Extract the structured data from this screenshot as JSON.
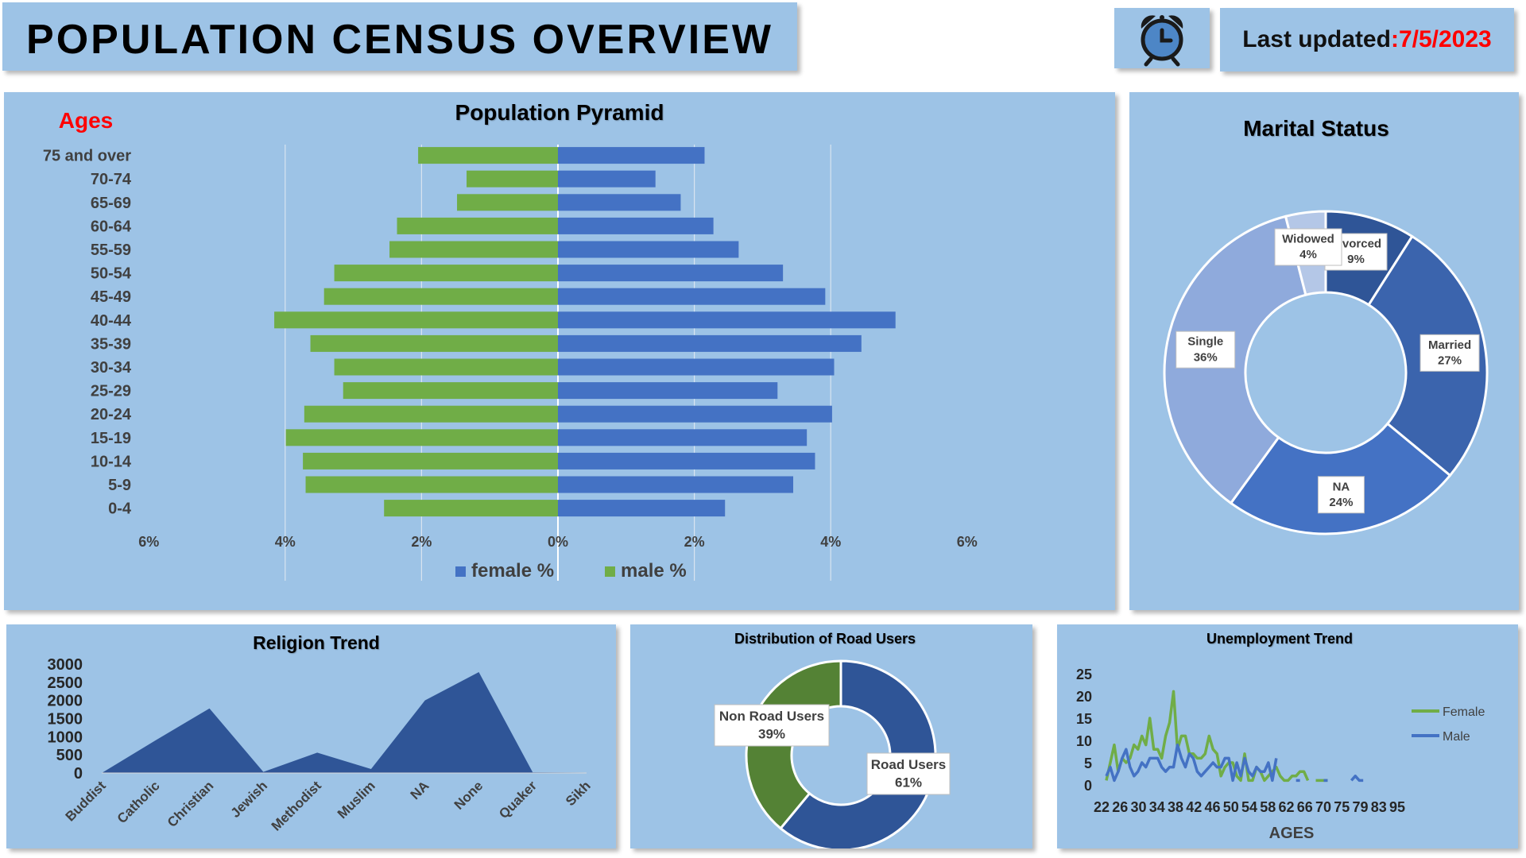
{
  "header": {
    "title": "POPULATION CENSUS OVERVIEW",
    "updated_label": "Last updated",
    "updated_sep": " : ",
    "updated_date": "7/5/2023",
    "clock_icon": "alarm-clock-icon"
  },
  "colors": {
    "panel": "#9dc3e6",
    "female": "#4472c4",
    "male": "#70ad47",
    "dark_blue": "#2f5597",
    "accent_red": "#ff0000"
  },
  "chart_data": [
    {
      "id": "pyramid",
      "type": "bar",
      "title": "Population Pyramid",
      "ylabel": "Ages",
      "categories": [
        "75 and over",
        "70-74",
        "65-69",
        "60-64",
        "55-59",
        "50-54",
        "45-49",
        "40-44",
        "35-39",
        "30-34",
        "25-29",
        "20-24",
        "15-19",
        "10-14",
        "5-9",
        "0-4"
      ],
      "series": [
        {
          "name": "female %",
          "values": [
            2.15,
            1.43,
            1.8,
            2.28,
            2.65,
            3.3,
            3.92,
            4.95,
            4.45,
            4.05,
            3.22,
            4.02,
            3.65,
            3.77,
            3.45,
            2.45
          ]
        },
        {
          "name": "male %",
          "values": [
            2.05,
            1.34,
            1.48,
            2.36,
            2.47,
            3.28,
            3.43,
            4.16,
            3.63,
            3.28,
            3.15,
            3.72,
            3.99,
            3.74,
            3.7,
            2.55
          ]
        }
      ],
      "xlim": [
        -6,
        6
      ],
      "xticks": [
        "6%",
        "4%",
        "2%",
        "0%",
        "2%",
        "4%",
        "6%"
      ],
      "grid": true,
      "legend": "bottom"
    },
    {
      "id": "marital",
      "type": "pie",
      "donut": true,
      "title": "Marital Status",
      "slices": [
        {
          "name": "Divorced",
          "value": 9,
          "label": "9%"
        },
        {
          "name": "Married",
          "value": 27,
          "label": "27%"
        },
        {
          "name": "NA",
          "value": 24,
          "label": "24%"
        },
        {
          "name": "Single",
          "value": 36,
          "label": "36%"
        },
        {
          "name": "Widowed",
          "value": 4,
          "label": "4%"
        }
      ],
      "colors": [
        "#2f5597",
        "#3b64ad",
        "#4472c4",
        "#8faadc",
        "#b4c7e7"
      ]
    },
    {
      "id": "religion",
      "type": "area",
      "title": "Religion Trend",
      "categories": [
        "Buddist",
        "Catholic",
        "Christian",
        "Jewish",
        "Methodist",
        "Muslim",
        "NA",
        "None",
        "Quaker",
        "Sikh"
      ],
      "values": [
        0,
        900,
        1780,
        30,
        560,
        110,
        2000,
        2780,
        20,
        10
      ],
      "ylim": [
        0,
        3000
      ],
      "yticks": [
        0,
        500,
        1000,
        1500,
        2000,
        2500,
        3000
      ],
      "color": "#2f5597"
    },
    {
      "id": "road",
      "type": "pie",
      "donut": true,
      "title": "Distribution of Road Users",
      "slices": [
        {
          "name": "Road Users",
          "value": 61,
          "label": "61%"
        },
        {
          "name": "Non Road Users",
          "value": 39,
          "label": "39%"
        }
      ],
      "colors": [
        "#2f5597",
        "#548235"
      ]
    },
    {
      "id": "unemployment",
      "type": "line",
      "title": "Unemployment  Trend",
      "xlabel": "AGES",
      "ylim": [
        0,
        25
      ],
      "yticks": [
        0,
        5,
        10,
        15,
        20,
        25
      ],
      "xticks": [
        "22",
        "26",
        "30",
        "34",
        "38",
        "42",
        "46",
        "50",
        "54",
        "58",
        "62",
        "66",
        "70",
        "75",
        "79",
        "83",
        "95"
      ],
      "x_start": 22,
      "series": [
        {
          "name": "Female",
          "values": [
            1,
            5,
            9,
            3,
            6,
            5,
            6,
            9,
            8,
            11,
            9,
            15,
            8,
            8,
            6,
            11,
            14,
            21,
            8,
            11,
            11,
            7,
            7,
            6,
            6,
            7,
            11,
            8,
            7,
            2,
            4,
            5,
            5,
            2,
            1,
            7,
            1,
            1,
            4,
            3,
            1,
            2,
            3,
            4,
            2,
            1,
            1,
            2,
            2,
            3,
            3,
            1,
            null,
            1,
            1,
            1,
            1,
            null,
            null,
            null,
            null,
            null,
            null,
            null,
            null,
            null,
            null,
            null,
            null,
            null,
            null,
            null,
            null
          ]
        },
        {
          "name": "Male",
          "values": [
            2,
            4,
            1,
            3,
            6,
            8,
            4,
            2,
            3,
            5,
            4,
            6,
            6,
            6,
            4,
            3,
            4,
            4,
            9,
            6,
            4,
            7,
            6,
            3,
            2,
            3,
            4,
            5,
            4,
            4,
            6,
            6,
            1,
            5,
            2,
            6,
            3,
            2,
            4,
            3,
            3,
            5,
            1,
            6,
            null,
            null,
            null,
            null,
            1,
            1,
            null,
            null,
            null,
            null,
            null,
            1,
            1,
            null,
            null,
            null,
            null,
            null,
            1,
            2,
            1,
            1,
            null,
            null,
            null,
            null,
            null,
            null,
            null
          ]
        }
      ],
      "colors": [
        "#70ad47",
        "#4472c4"
      ],
      "legend": "right"
    }
  ]
}
